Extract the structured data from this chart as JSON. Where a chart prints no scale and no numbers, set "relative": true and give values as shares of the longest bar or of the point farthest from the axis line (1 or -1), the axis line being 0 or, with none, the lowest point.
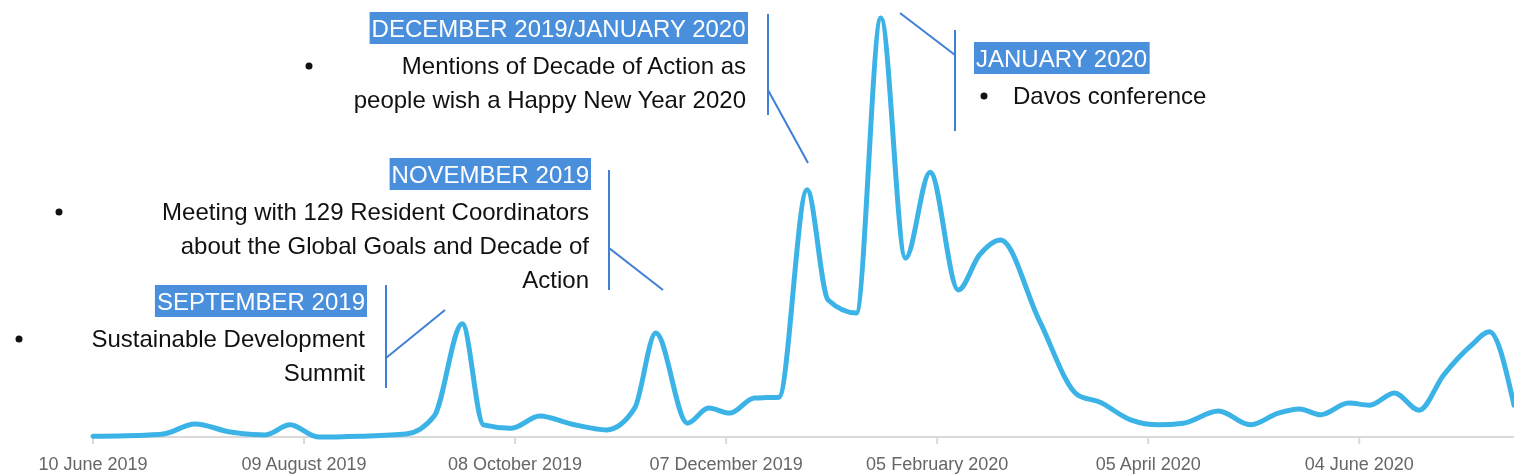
{
  "chart_data": {
    "type": "line",
    "relative": true,
    "x": [
      "2019-06-10",
      "2019-06-26",
      "2019-06-30",
      "2019-07-09",
      "2019-07-19",
      "2019-07-29",
      "2019-08-05",
      "2019-08-13",
      "2019-08-25",
      "2019-09-07",
      "2019-09-15",
      "2019-09-23",
      "2019-09-29",
      "2019-10-07",
      "2019-10-15",
      "2019-10-24",
      "2019-11-03",
      "2019-11-11",
      "2019-11-17",
      "2019-11-26",
      "2019-12-02",
      "2019-12-08",
      "2019-12-15",
      "2019-12-22",
      "2019-12-30",
      "2020-01-05",
      "2020-01-13",
      "2020-01-20",
      "2020-01-27",
      "2020-02-03",
      "2020-02-11",
      "2020-02-17",
      "2020-02-23",
      "2020-03-05",
      "2020-03-16",
      "2020-03-22",
      "2020-03-31",
      "2020-04-08",
      "2020-04-15",
      "2020-04-25",
      "2020-05-04",
      "2020-05-12",
      "2020-05-18",
      "2020-05-24",
      "2020-06-01",
      "2020-06-07",
      "2020-06-14",
      "2020-06-21",
      "2020-06-28",
      "2020-07-06",
      "2020-07-11",
      "2020-07-18"
    ],
    "series": [
      {
        "color": "#3bb3e6",
        "values": [
          0.002,
          0.005,
          0.007,
          0.031,
          0.012,
          0.005,
          0.029,
          0,
          0.002,
          0.007,
          0.05,
          0.27,
          0.029,
          0.021,
          0.05,
          0.031,
          0.017,
          0.069,
          0.248,
          0.033,
          0.069,
          0.057,
          0.093,
          0.095,
          0.59,
          0.327,
          0.296,
          1,
          0.427,
          0.632,
          0.351,
          0.434,
          0.47,
          0.279,
          0.1,
          0.084,
          0.041,
          0.029,
          0.033,
          0.062,
          0.029,
          0.057,
          0.067,
          0.053,
          0.081,
          0.076,
          0.105,
          0.064,
          0.148,
          0.22,
          0.251,
          0.076
        ]
      }
    ],
    "xlim": [
      "2019-06-10",
      "2020-07-18"
    ],
    "xticks": [
      {
        "value": "2019-06-10",
        "label": "10 June 2019"
      },
      {
        "value": "2019-08-09",
        "label": "09 August 2019"
      },
      {
        "value": "2019-10-08",
        "label": "08 October 2019"
      },
      {
        "value": "2019-12-07",
        "label": "07 December 2019"
      },
      {
        "value": "2020-02-05",
        "label": "05 February 2020"
      },
      {
        "value": "2020-04-05",
        "label": "05 April 2020"
      },
      {
        "value": "2020-06-04",
        "label": "04 June 2020"
      }
    ],
    "grid": false,
    "marker": "none",
    "line_style": "solid",
    "annotations": [
      "SEPTEMBER 2019",
      "Sustainable Development Summit",
      "NOVEMBER 2019",
      "Meeting with 129 Resident Coordinators about the Global Goals and Decade of Action",
      "DECEMBER 2019/JANUARY 2020",
      "Mentions of Decade of Action as people wish a Happy New Year 2020",
      "JANUARY 2020",
      "Davos conference"
    ]
  }
}
